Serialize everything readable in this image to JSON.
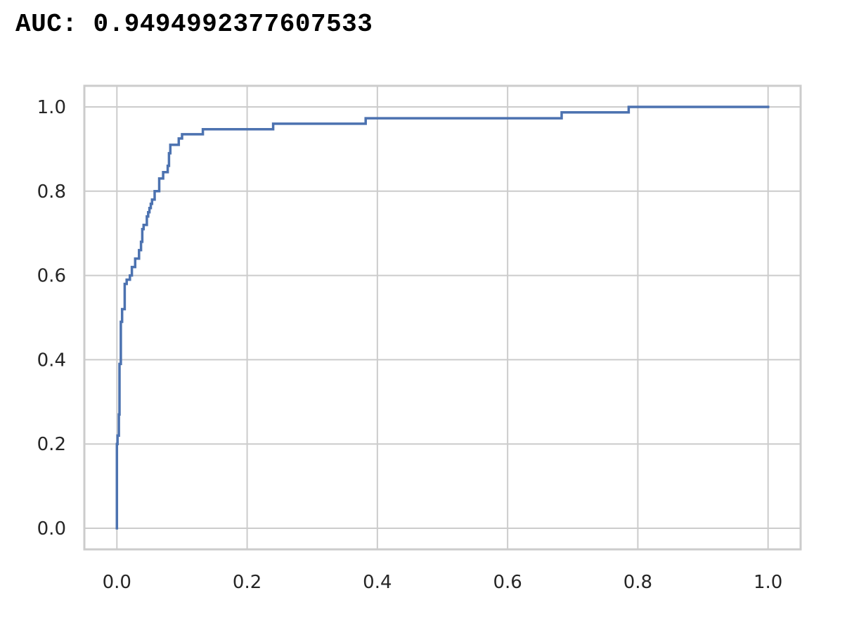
{
  "output": {
    "auc_line": "AUC: 0.9494992377607533"
  },
  "chart_data": {
    "type": "line",
    "title": "",
    "xlabel": "",
    "ylabel": "",
    "xlim": [
      -0.05,
      1.05
    ],
    "ylim": [
      -0.05,
      1.05
    ],
    "grid": true,
    "legend": "none",
    "x_ticks": [
      0.0,
      0.2,
      0.4,
      0.6,
      0.8,
      1.0
    ],
    "x_tick_labels": [
      "0.0",
      "0.2",
      "0.4",
      "0.6",
      "0.8",
      "1.0"
    ],
    "y_ticks": [
      0.0,
      0.2,
      0.4,
      0.6,
      0.8,
      1.0
    ],
    "y_tick_labels": [
      "0.0",
      "0.2",
      "0.4",
      "0.6",
      "0.8",
      "1.0"
    ],
    "colors": {
      "line": "#4c72b0",
      "grid": "#cccccc",
      "frame": "#cccccc",
      "tick_text": "#262626"
    },
    "series": [
      {
        "x": [
          0.0,
          0.0,
          0.001,
          0.001,
          0.003,
          0.003,
          0.004,
          0.004,
          0.006,
          0.006,
          0.008,
          0.008,
          0.012,
          0.012,
          0.015,
          0.015,
          0.02,
          0.02,
          0.023,
          0.023,
          0.028,
          0.028,
          0.034,
          0.034,
          0.037,
          0.037,
          0.039,
          0.039,
          0.041,
          0.041,
          0.046,
          0.046,
          0.048,
          0.048,
          0.05,
          0.05,
          0.052,
          0.052,
          0.054,
          0.054,
          0.056,
          0.056,
          0.058,
          0.058,
          0.065,
          0.065,
          0.067,
          0.067,
          0.071,
          0.071,
          0.078,
          0.078,
          0.08,
          0.08,
          0.082,
          0.082,
          0.086,
          0.086,
          0.095,
          0.095,
          0.1,
          0.1,
          0.132,
          0.132,
          0.24,
          0.24,
          0.382,
          0.382,
          0.683,
          0.683,
          0.786,
          0.786,
          1.0
        ],
        "y": [
          0.0,
          0.2,
          0.2,
          0.22,
          0.22,
          0.27,
          0.27,
          0.39,
          0.39,
          0.49,
          0.49,
          0.52,
          0.52,
          0.58,
          0.58,
          0.59,
          0.59,
          0.6,
          0.6,
          0.62,
          0.62,
          0.64,
          0.64,
          0.66,
          0.66,
          0.68,
          0.68,
          0.71,
          0.71,
          0.72,
          0.72,
          0.74,
          0.74,
          0.75,
          0.75,
          0.76,
          0.76,
          0.77,
          0.77,
          0.78,
          0.78,
          0.78,
          0.78,
          0.8,
          0.8,
          0.83,
          0.83,
          0.83,
          0.83,
          0.845,
          0.845,
          0.86,
          0.86,
          0.89,
          0.89,
          0.91,
          0.91,
          0.91,
          0.91,
          0.925,
          0.925,
          0.935,
          0.935,
          0.947,
          0.947,
          0.96,
          0.96,
          0.973,
          0.973,
          0.987,
          0.987,
          1.0,
          1.0
        ]
      }
    ]
  }
}
